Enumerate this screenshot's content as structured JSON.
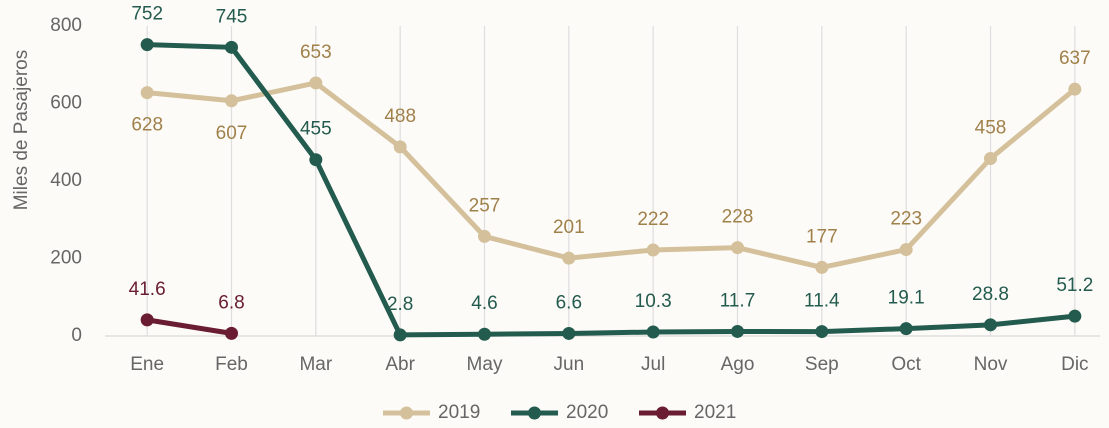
{
  "chart_data": {
    "type": "line",
    "y_label": "Miles de Pasajeros",
    "categories": [
      "Ene",
      "Feb",
      "Mar",
      "Abr",
      "May",
      "Jun",
      "Jul",
      "Ago",
      "Sep",
      "Oct",
      "Nov",
      "Dic"
    ],
    "series": [
      {
        "name": "2019",
        "color": "#d4c19c",
        "label_color": "#a0814a",
        "values": [
          628,
          607,
          653,
          488,
          257,
          201,
          222,
          228,
          177,
          223,
          458,
          637
        ]
      },
      {
        "name": "2020",
        "color": "#235b4e",
        "label_color": "#235b4e",
        "values": [
          752,
          745,
          455,
          2.8,
          4.6,
          6.6,
          10.3,
          11.7,
          11.4,
          19.1,
          28.8,
          51.2
        ]
      },
      {
        "name": "2021",
        "color": "#691c32",
        "label_color": "#691c32",
        "values": [
          41.6,
          6.8,
          null,
          null,
          null,
          null,
          null,
          null,
          null,
          null,
          null,
          null
        ]
      }
    ],
    "ylim": [
      0,
      800
    ],
    "yticks": [
      0,
      200,
      400,
      600,
      800
    ],
    "grid": true
  }
}
